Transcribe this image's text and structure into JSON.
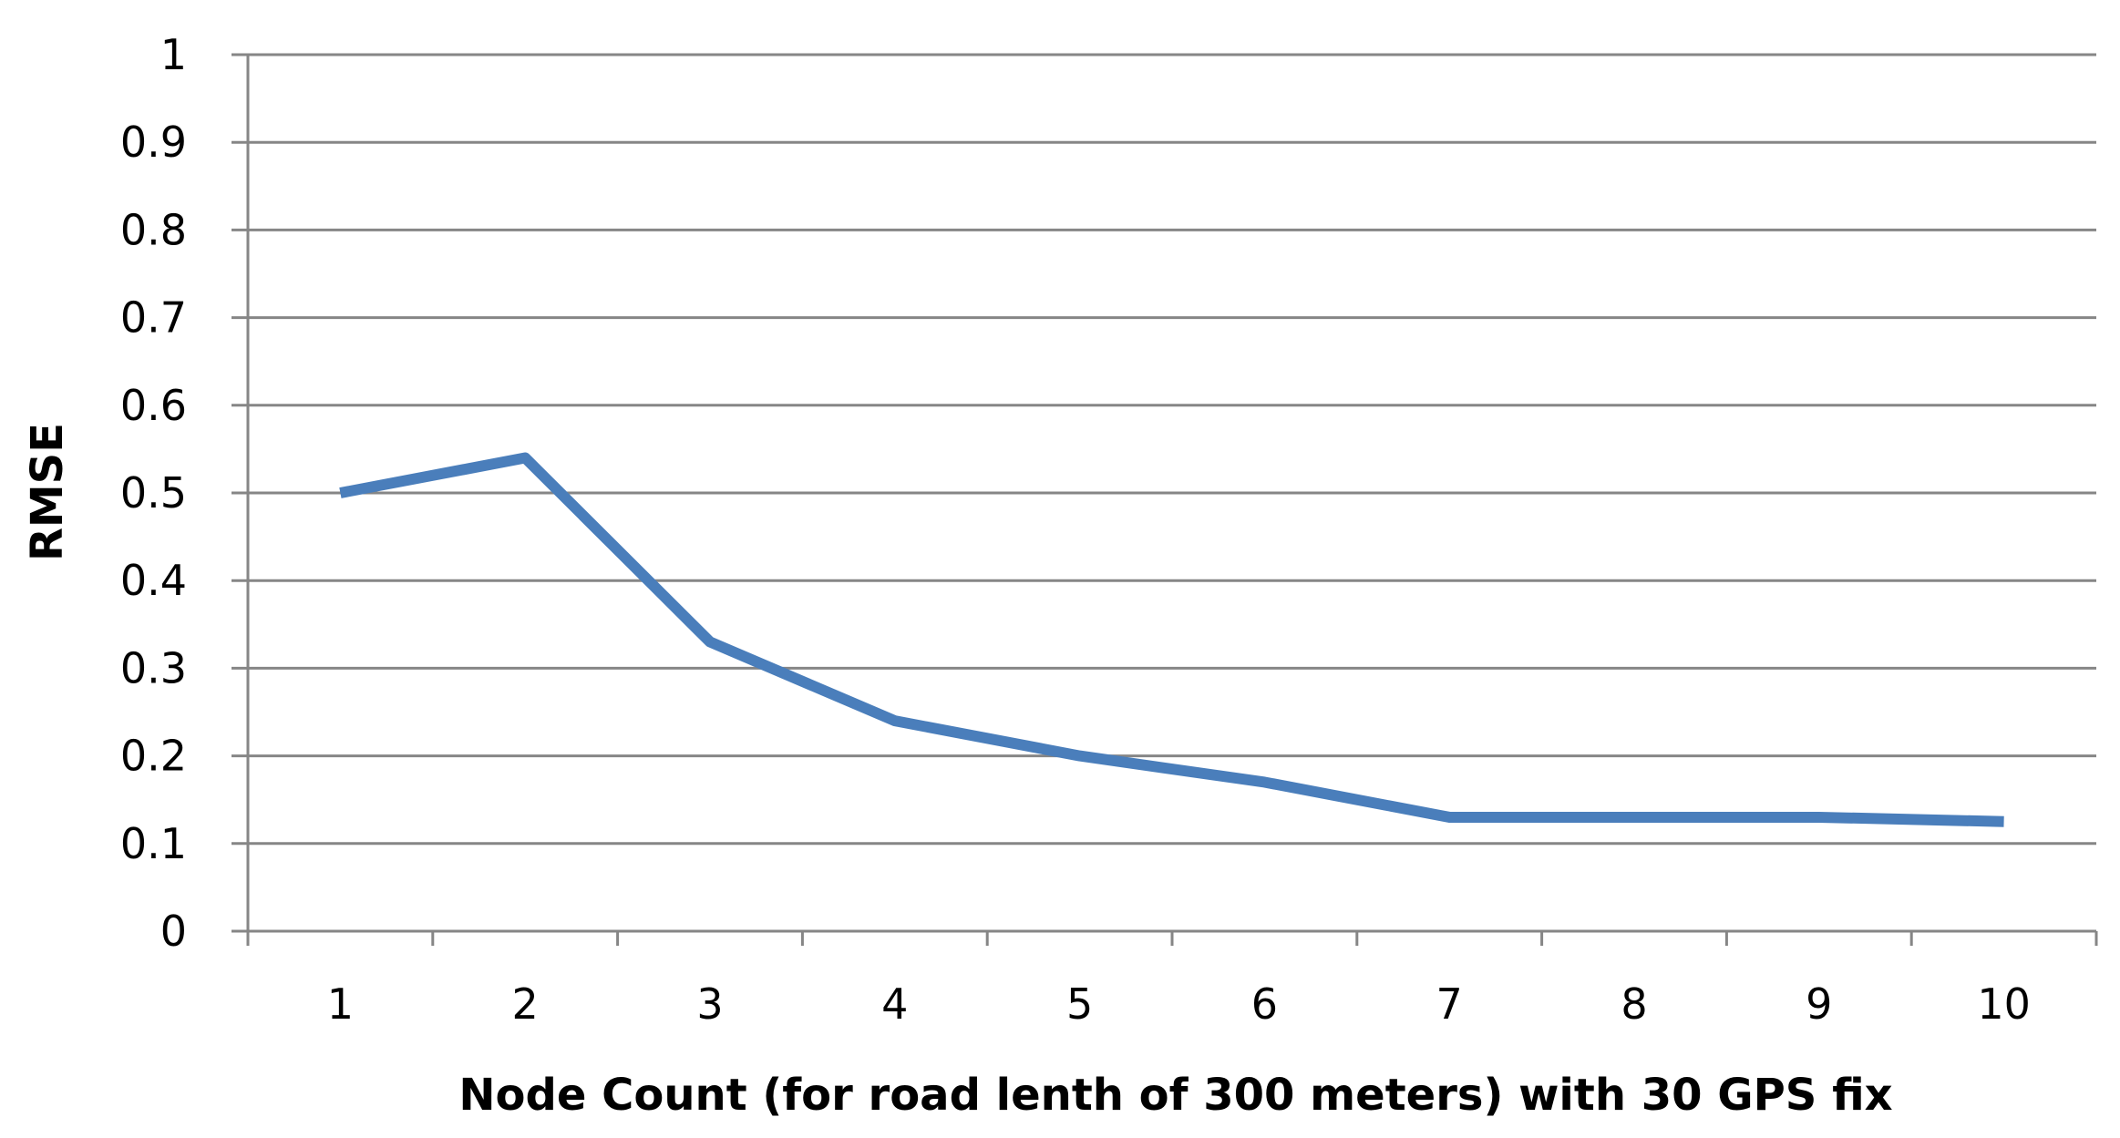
{
  "chart_data": {
    "type": "line",
    "title": "",
    "xlabel": "Node Count (for road lenth of 300 meters) with 30 GPS fix",
    "ylabel": "RMSE",
    "categories": [
      "1",
      "2",
      "3",
      "4",
      "5",
      "6",
      "7",
      "8",
      "9",
      "10"
    ],
    "series": [
      {
        "values": [
          0.5,
          0.54,
          0.33,
          0.24,
          0.2,
          0.17,
          0.13,
          0.13,
          0.13,
          0.125
        ]
      }
    ],
    "ylim": [
      0,
      1
    ],
    "yticks": [
      "0",
      "0.1",
      "0.2",
      "0.3",
      "0.4",
      "0.5",
      "0.6",
      "0.7",
      "0.8",
      "0.9",
      "1"
    ],
    "grid": true,
    "legend": "none",
    "colors": {
      "line": "#4a7ebb",
      "grid": "#868686",
      "axis": "#868686"
    }
  }
}
